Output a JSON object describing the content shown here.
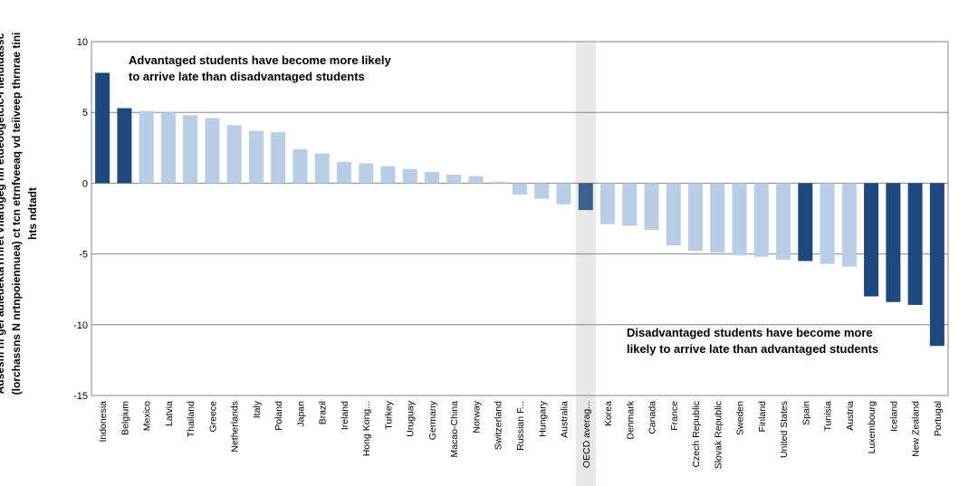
{
  "chart_data": {
    "type": "bar",
    "ylabel": [
      "Ausesm nf gei adiedektaTrnret vfiardgeg nn etdeo0getcic-l lieluidassc",
      "(lorchassns N nrtnpoiennuea) ct tcn etrnfveeaq vd teiiveep thrnrae tini",
      "hts ndtadt"
    ],
    "ylim": [
      -15,
      10
    ],
    "yticks": [
      10,
      5,
      0,
      -5,
      -10,
      -15
    ],
    "grid": true,
    "highlight_category": "OECD averag...",
    "categories": [
      "Indonesia",
      "Belgium",
      "Mexico",
      "Latvia",
      "Thailand",
      "Greece",
      "Netherlands",
      "Italy",
      "Poland",
      "Japan",
      "Brazil",
      "Ireland",
      "Hong Kong...",
      "Turkey",
      "Uruguay",
      "Germany",
      "Macao-China",
      "Norway",
      "Switzerland",
      "Russian F...",
      "Hungary",
      "Australia",
      "OECD averag...",
      "Korea",
      "Denmark",
      "Canada",
      "France",
      "Czech Republic",
      "Slovak Republic",
      "Sweden",
      "Finland",
      "United States",
      "Spain",
      "Tunisia",
      "Austria",
      "Luxembourg",
      "Iceland",
      "New Zealand",
      "Portugal"
    ],
    "values": [
      7.8,
      5.3,
      5.1,
      5.0,
      4.8,
      4.6,
      4.1,
      3.7,
      3.6,
      2.4,
      2.1,
      1.5,
      1.4,
      1.2,
      1.0,
      0.8,
      0.6,
      0.5,
      0.1,
      -0.8,
      -1.1,
      -1.5,
      -1.9,
      -2.9,
      -3.0,
      -3.3,
      -4.4,
      -4.8,
      -4.9,
      -5.1,
      -5.2,
      -5.4,
      -5.5,
      -5.7,
      -5.9,
      -8.0,
      -8.4,
      -8.6,
      -11.5
    ],
    "significant": [
      true,
      true,
      false,
      false,
      false,
      false,
      false,
      false,
      false,
      false,
      false,
      false,
      false,
      false,
      false,
      false,
      false,
      false,
      false,
      false,
      false,
      false,
      true,
      false,
      false,
      false,
      false,
      false,
      false,
      false,
      false,
      false,
      true,
      false,
      false,
      true,
      true,
      true,
      true
    ],
    "colors": {
      "significant": "#1f497d",
      "not_significant": "#b9cde5",
      "oecd": "#3e5f8a",
      "highlight_band": "#e8e8e8",
      "grid": "#868686",
      "frame": "#868686"
    },
    "annotations": [
      {
        "lines": [
          "Advantaged students have become more likely",
          "to  arrive late than disadvantaged students"
        ]
      },
      {
        "lines": [
          "Disadvantaged students have become more",
          "likely to  arrive late than advantaged students"
        ]
      }
    ]
  }
}
